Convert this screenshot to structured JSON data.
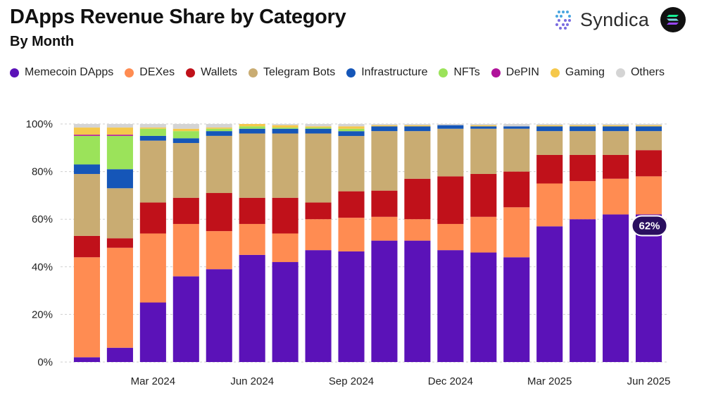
{
  "header": {
    "title": "DApps Revenue Share by Category",
    "subtitle": "By Month",
    "brand_name": "Syndica"
  },
  "chart_data": {
    "type": "bar",
    "stacked": true,
    "title": "DApps Revenue Share by Category",
    "subtitle": "By Month",
    "xlabel": "",
    "ylabel": "",
    "ylim": [
      0,
      100
    ],
    "y_ticks": [
      0,
      20,
      40,
      60,
      80,
      100
    ],
    "y_tick_labels": [
      "0%",
      "20%",
      "40%",
      "60%",
      "80%",
      "100%"
    ],
    "categories": [
      "Jan 2024",
      "Feb 2024",
      "Mar 2024",
      "Apr 2024",
      "May 2024",
      "Jun 2024",
      "Jul 2024",
      "Aug 2024",
      "Sep 2024",
      "Oct 2024",
      "Nov 2024",
      "Dec 2024",
      "Jan 2025",
      "Feb 2025",
      "Mar 2025",
      "Apr 2025",
      "May 2025",
      "Jun 2025"
    ],
    "x_tick_labels": [
      "",
      "",
      "Mar 2024",
      "",
      "",
      "Jun 2024",
      "",
      "",
      "Sep 2024",
      "",
      "",
      "Dec 2024",
      "",
      "",
      "Mar 2025",
      "",
      "",
      "Jun 2025"
    ],
    "legend_position": "top",
    "series": [
      {
        "name": "Memecoin DApps",
        "color": "#5b12b8",
        "values": [
          2,
          6,
          25,
          36,
          39,
          45,
          42,
          47,
          46,
          51,
          51,
          47,
          46,
          44,
          57,
          60,
          62,
          62
        ]
      },
      {
        "name": "DEXes",
        "color": "#ff8c52",
        "values": [
          42,
          42,
          29,
          22,
          16,
          13,
          12,
          13,
          14,
          10,
          9,
          11,
          15,
          21,
          18,
          16,
          15,
          16
        ]
      },
      {
        "name": "Wallets",
        "color": "#c0111a",
        "values": [
          9,
          4,
          13,
          11,
          16,
          11,
          15,
          7,
          11,
          11,
          17,
          20,
          18,
          15,
          12,
          11,
          10,
          11
        ]
      },
      {
        "name": "Telegram Bots",
        "color": "#c9ac72",
        "values": [
          26,
          21,
          26,
          23,
          24,
          27,
          27,
          29,
          23,
          25,
          20,
          20,
          19,
          18,
          10,
          10,
          10,
          8
        ]
      },
      {
        "name": "Infrastructure",
        "color": "#1556b8",
        "values": [
          4,
          8,
          2,
          2,
          2,
          2,
          2,
          2,
          2,
          2,
          2,
          1.5,
          1,
          1,
          2,
          2,
          2,
          2
        ]
      },
      {
        "name": "NFTs",
        "color": "#9be35a",
        "values": [
          12,
          14,
          3,
          3,
          1,
          1,
          0.5,
          0.5,
          1,
          0,
          0,
          0,
          0,
          0,
          0,
          0,
          0,
          0
        ]
      },
      {
        "name": "DePIN",
        "color": "#b0129a",
        "values": [
          0.5,
          0.5,
          0,
          0,
          0,
          0,
          0,
          0,
          0,
          0,
          0,
          0,
          0,
          0,
          0,
          0,
          0,
          0
        ]
      },
      {
        "name": "Gaming",
        "color": "#f5c84b",
        "values": [
          3,
          3,
          0.5,
          1,
          0.5,
          1,
          1,
          0.5,
          1,
          0.5,
          0.5,
          0,
          0.5,
          0,
          0.5,
          0.5,
          0.5,
          0.5
        ]
      },
      {
        "name": "Others",
        "color": "#d4d4d4",
        "values": [
          1.5,
          1.5,
          1.5,
          2,
          1.5,
          0,
          0.5,
          1,
          1,
          0.5,
          0.5,
          0.5,
          0.5,
          1,
          0.5,
          0.5,
          0.5,
          0.5
        ]
      }
    ],
    "annotations": [
      {
        "category": "Jun 2025",
        "series": "Memecoin DApps",
        "text": "62%"
      }
    ]
  }
}
